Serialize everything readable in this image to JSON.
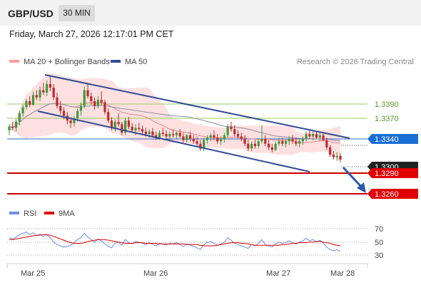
{
  "header": {
    "symbol": "GBP/USD",
    "interval": "30 MIN"
  },
  "timestamp": "Friday, March 27, 2026 12:17:01 PM CET",
  "legend": {
    "ma20_label": "MA 20 + Bollinger Bands",
    "ma50_label": "MA 50",
    "copyright": "Research © 2026 Trading Central"
  },
  "colors": {
    "candle_up": "#3c9a3c",
    "candle_down": "#c0282d",
    "channel": "#2f4b96",
    "bollinger": "#ffd5d5",
    "ma20": "#e8888a",
    "ma50": "#8a8fa8",
    "resistance": "#99cc66",
    "pivot": "#2a6ac8",
    "support": "#cc0000",
    "rsi": "#6b8fe8",
    "rsi_ma": "#e00000"
  },
  "levels": {
    "r2": "1.3390",
    "r1": "1.3370",
    "pivot": "1.3340",
    "last": "1.3300",
    "s1": "1.3290",
    "s2": "1.3260"
  },
  "rsi_panel": {
    "rsi_label": "RSI",
    "ma_label": "9MA",
    "levels": [
      "70",
      "50",
      "30"
    ]
  },
  "x_axis": [
    "Mar 25",
    "Mar 26",
    "Mar 27",
    "Mar 28"
  ],
  "chart_data": {
    "type": "candlestick",
    "price_range": [
      1.3252,
      1.3445
    ],
    "rsi_range": [
      25,
      75
    ],
    "candles": [
      [
        1.3348,
        1.3358,
        1.334,
        1.3354
      ],
      [
        1.3354,
        1.3362,
        1.3348,
        1.3352
      ],
      [
        1.3352,
        1.3366,
        1.3346,
        1.3362
      ],
      [
        1.3362,
        1.338,
        1.3356,
        1.3376
      ],
      [
        1.3376,
        1.339,
        1.337,
        1.3386
      ],
      [
        1.3386,
        1.34,
        1.3382,
        1.3396
      ],
      [
        1.3396,
        1.3404,
        1.3386,
        1.339
      ],
      [
        1.339,
        1.3412,
        1.3388,
        1.3406
      ],
      [
        1.3406,
        1.3414,
        1.3398,
        1.3402
      ],
      [
        1.3402,
        1.342,
        1.3396,
        1.3414
      ],
      [
        1.3414,
        1.3426,
        1.3406,
        1.341
      ],
      [
        1.341,
        1.343,
        1.3404,
        1.3424
      ],
      [
        1.3424,
        1.3438,
        1.3412,
        1.3418
      ],
      [
        1.3418,
        1.3424,
        1.3398,
        1.3402
      ],
      [
        1.3402,
        1.341,
        1.3384,
        1.3388
      ],
      [
        1.3388,
        1.3396,
        1.3374,
        1.338
      ],
      [
        1.338,
        1.3386,
        1.3366,
        1.3372
      ],
      [
        1.3372,
        1.3378,
        1.3358,
        1.3364
      ],
      [
        1.3364,
        1.337,
        1.3352,
        1.336
      ],
      [
        1.336,
        1.3372,
        1.3354,
        1.3368
      ],
      [
        1.3368,
        1.3384,
        1.3362,
        1.338
      ],
      [
        1.338,
        1.3394,
        1.3372,
        1.3388
      ],
      [
        1.3388,
        1.342,
        1.3384,
        1.3414
      ],
      [
        1.3414,
        1.3426,
        1.34,
        1.3404
      ],
      [
        1.3404,
        1.341,
        1.339,
        1.3396
      ],
      [
        1.3396,
        1.3402,
        1.3382,
        1.3388
      ],
      [
        1.3388,
        1.3404,
        1.3384,
        1.3398
      ],
      [
        1.3398,
        1.3412,
        1.339,
        1.3394
      ],
      [
        1.3394,
        1.3398,
        1.3374,
        1.3378
      ],
      [
        1.3378,
        1.3384,
        1.336,
        1.3364
      ],
      [
        1.3364,
        1.337,
        1.3348,
        1.3352
      ],
      [
        1.3352,
        1.3366,
        1.3346,
        1.3362
      ],
      [
        1.3362,
        1.3376,
        1.3354,
        1.3358
      ],
      [
        1.3358,
        1.3362,
        1.334,
        1.3344
      ],
      [
        1.3344,
        1.3368,
        1.334,
        1.3364
      ],
      [
        1.3364,
        1.337,
        1.335,
        1.3354
      ],
      [
        1.3354,
        1.336,
        1.3344,
        1.3348
      ],
      [
        1.3348,
        1.3358,
        1.334,
        1.3352
      ],
      [
        1.3352,
        1.336,
        1.3346,
        1.335
      ],
      [
        1.335,
        1.3356,
        1.3342,
        1.3346
      ],
      [
        1.3346,
        1.3352,
        1.3338,
        1.3342
      ],
      [
        1.3342,
        1.335,
        1.3336,
        1.3346
      ],
      [
        1.3346,
        1.3352,
        1.3336,
        1.334
      ],
      [
        1.334,
        1.3346,
        1.3332,
        1.3336
      ],
      [
        1.3336,
        1.3348,
        1.3332,
        1.3344
      ],
      [
        1.3344,
        1.3352,
        1.3338,
        1.3342
      ],
      [
        1.3342,
        1.3348,
        1.3334,
        1.3338
      ],
      [
        1.3338,
        1.3346,
        1.333,
        1.3342
      ],
      [
        1.3342,
        1.335,
        1.3336,
        1.334
      ],
      [
        1.334,
        1.3346,
        1.3334,
        1.3344
      ],
      [
        1.3344,
        1.335,
        1.3336,
        1.3338
      ],
      [
        1.3338,
        1.3344,
        1.3328,
        1.3332
      ],
      [
        1.3332,
        1.3342,
        1.3328,
        1.334
      ],
      [
        1.334,
        1.3346,
        1.333,
        1.3334
      ],
      [
        1.3334,
        1.334,
        1.3326,
        1.333
      ],
      [
        1.333,
        1.3338,
        1.3322,
        1.3326
      ],
      [
        1.3326,
        1.3332,
        1.3314,
        1.3318
      ],
      [
        1.3318,
        1.3336,
        1.3314,
        1.3332
      ],
      [
        1.3332,
        1.334,
        1.3326,
        1.3336
      ],
      [
        1.3336,
        1.3344,
        1.333,
        1.334
      ],
      [
        1.334,
        1.3348,
        1.3332,
        1.3336
      ],
      [
        1.3336,
        1.3342,
        1.3326,
        1.333
      ],
      [
        1.333,
        1.3338,
        1.3324,
        1.3334
      ],
      [
        1.3334,
        1.3344,
        1.3328,
        1.334
      ],
      [
        1.334,
        1.3358,
        1.3336,
        1.3354
      ],
      [
        1.3354,
        1.3362,
        1.3346,
        1.335
      ],
      [
        1.335,
        1.3356,
        1.3338,
        1.3342
      ],
      [
        1.3342,
        1.3348,
        1.3334,
        1.3338
      ],
      [
        1.3338,
        1.3344,
        1.333,
        1.3334
      ],
      [
        1.3334,
        1.334,
        1.3322,
        1.3326
      ],
      [
        1.3326,
        1.3332,
        1.3314,
        1.3318
      ],
      [
        1.3318,
        1.333,
        1.3314,
        1.3326
      ],
      [
        1.3326,
        1.3332,
        1.3318,
        1.3322
      ],
      [
        1.3322,
        1.3334,
        1.3318,
        1.333
      ],
      [
        1.333,
        1.3356,
        1.3326,
        1.3334
      ],
      [
        1.3334,
        1.334,
        1.3322,
        1.3326
      ],
      [
        1.3326,
        1.3332,
        1.3316,
        1.332
      ],
      [
        1.332,
        1.3326,
        1.3312,
        1.3316
      ],
      [
        1.3316,
        1.333,
        1.3314,
        1.3326
      ],
      [
        1.3326,
        1.3336,
        1.3322,
        1.333
      ],
      [
        1.333,
        1.3336,
        1.3322,
        1.3326
      ],
      [
        1.3326,
        1.3334,
        1.332,
        1.333
      ],
      [
        1.333,
        1.3338,
        1.3324,
        1.3334
      ],
      [
        1.3334,
        1.334,
        1.3326,
        1.333
      ],
      [
        1.333,
        1.3336,
        1.3322,
        1.3326
      ],
      [
        1.3326,
        1.3334,
        1.332,
        1.333
      ],
      [
        1.333,
        1.3338,
        1.3324,
        1.3334
      ],
      [
        1.3334,
        1.3346,
        1.333,
        1.3342
      ],
      [
        1.3342,
        1.3348,
        1.3334,
        1.3338
      ],
      [
        1.3338,
        1.3346,
        1.3332,
        1.3342
      ],
      [
        1.3342,
        1.3346,
        1.3334,
        1.3336
      ],
      [
        1.3336,
        1.3344,
        1.333,
        1.334
      ],
      [
        1.334,
        1.3344,
        1.333,
        1.3332
      ],
      [
        1.3332,
        1.3336,
        1.3316,
        1.332
      ],
      [
        1.332,
        1.3324,
        1.3304,
        1.3308
      ],
      [
        1.3308,
        1.3314,
        1.33,
        1.3304
      ],
      [
        1.3304,
        1.3312,
        1.3298,
        1.3306
      ],
      [
        1.3306,
        1.331,
        1.3296,
        1.33
      ]
    ],
    "rsi": [
      55,
      53,
      56,
      60,
      62,
      64,
      60,
      63,
      58,
      61,
      57,
      60,
      55,
      48,
      44,
      42,
      40,
      41,
      43,
      47,
      52,
      55,
      62,
      56,
      52,
      48,
      53,
      50,
      45,
      41,
      39,
      46,
      48,
      43,
      52,
      47,
      45,
      49,
      48,
      46,
      44,
      47,
      44,
      42,
      46,
      45,
      43,
      46,
      45,
      47,
      44,
      41,
      45,
      43,
      41,
      39,
      36,
      44,
      47,
      49,
      46,
      43,
      45,
      48,
      55,
      51,
      46,
      44,
      42,
      40,
      38,
      44,
      42,
      46,
      52,
      44,
      42,
      40,
      45,
      48,
      46,
      47,
      50,
      47,
      45,
      48,
      50,
      54,
      50,
      52,
      48,
      51,
      46,
      40,
      36,
      34,
      36,
      33
    ],
    "rsi_ma": [
      52,
      52,
      53,
      54,
      55,
      56,
      57,
      58,
      59,
      59,
      60,
      60,
      59,
      57,
      55,
      53,
      51,
      49,
      47,
      46,
      46,
      46,
      47,
      49,
      50,
      51,
      52,
      52,
      52,
      51,
      50,
      49,
      48,
      47,
      46,
      46,
      46,
      47,
      47,
      47,
      46,
      46,
      46,
      46,
      45,
      45,
      45,
      45,
      45,
      45,
      45,
      45,
      44,
      44,
      44,
      44,
      43,
      42,
      42,
      42,
      42,
      43,
      44,
      45,
      46,
      47,
      47,
      47,
      46,
      46,
      45,
      44,
      43,
      43,
      43,
      43,
      43,
      43,
      43,
      43,
      44,
      44,
      45,
      46,
      46,
      47,
      47,
      47,
      48,
      48,
      49,
      49,
      48,
      47,
      46,
      44,
      43,
      42
    ]
  }
}
